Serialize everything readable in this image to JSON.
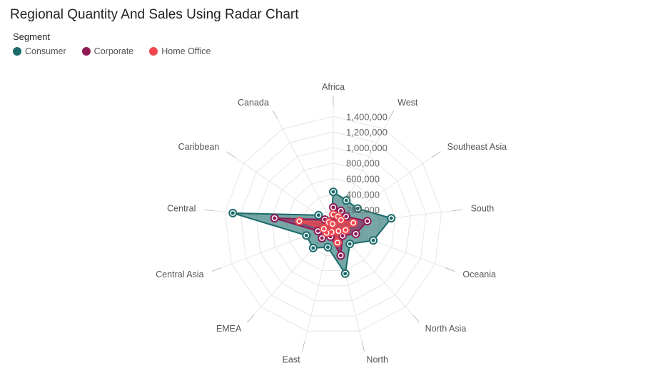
{
  "chart_data": {
    "type": "radar",
    "title": "Regional Quantity And Sales Using Radar Chart",
    "legend_title": "Segment",
    "legend_position": "top-left",
    "grid": true,
    "categories": [
      "Africa",
      "West",
      "Southeast Asia",
      "South",
      "Oceania",
      "North Asia",
      "North",
      "East",
      "EMEA",
      "Central Asia",
      "Central",
      "Caribbean",
      "Canada"
    ],
    "r_ticks": [
      200000,
      400000,
      600000,
      800000,
      1000000,
      1200000,
      1400000
    ],
    "r_tick_labels": [
      "200,000",
      "400,000",
      "600,000",
      "800,000",
      "1,000,000",
      "1,200,000",
      "1,400,000"
    ],
    "r_max": 1540000,
    "series": [
      {
        "name": "Consumer",
        "color": "#1b6b6b",
        "values": [
          430000,
          360000,
          380000,
          750000,
          550000,
          320000,
          640000,
          290000,
          390000,
          370000,
          1300000,
          230000,
          60000
        ]
      },
      {
        "name": "Corporate",
        "color": "#8f1b55",
        "values": [
          230000,
          210000,
          200000,
          440000,
          310000,
          180000,
          400000,
          150000,
          220000,
          210000,
          760000,
          130000,
          40000
        ]
      },
      {
        "name": "Home Office",
        "color": "#f0474f",
        "values": [
          140000,
          130000,
          120000,
          260000,
          170000,
          100000,
          230000,
          90000,
          130000,
          130000,
          440000,
          70000,
          20000
        ]
      }
    ]
  }
}
